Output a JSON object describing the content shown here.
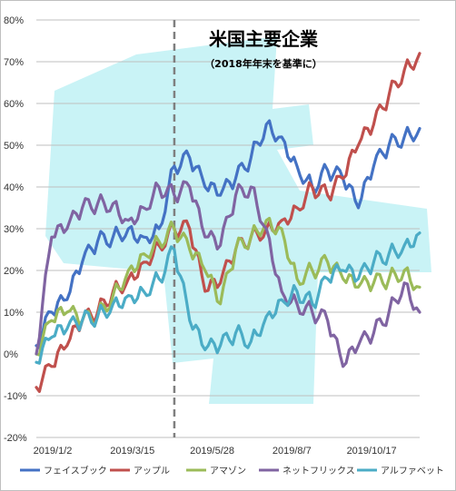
{
  "chart_data": {
    "type": "line",
    "title": "米国主要企業",
    "subtitle": "（2018年年末を基準に）",
    "x_tick_labels": [
      "2019/1/2",
      "2019/3/15",
      "2019/5/28",
      "2019/8/7",
      "2019/10/17"
    ],
    "y_tick_labels": [
      "80%",
      "70%",
      "60%",
      "50%",
      "40%",
      "30%",
      "20%",
      "10%",
      "0%",
      "-10%",
      "-20%"
    ],
    "ylim": [
      -20,
      80
    ],
    "x_unit": "trading days since 2019/1/2",
    "xlim": [
      0,
      250
    ],
    "reference_line_x": 90,
    "grid": "horizontal",
    "legend_position": "bottom",
    "series": [
      {
        "name": "フェイスブック",
        "color": "#4472c4",
        "x": [
          0,
          10,
          20,
          30,
          40,
          50,
          60,
          70,
          80,
          90,
          100,
          110,
          120,
          130,
          140,
          150,
          160,
          170,
          180,
          190,
          200,
          210,
          220,
          230,
          240,
          250
        ],
        "values": [
          2,
          10,
          13,
          22,
          27,
          28,
          30,
          28,
          30,
          45,
          47,
          40,
          38,
          42,
          47,
          55,
          52,
          45,
          40,
          44,
          42,
          35,
          45,
          50,
          52,
          54
        ]
      },
      {
        "name": "アップル",
        "color": "#c0504d",
        "x": [
          0,
          10,
          20,
          30,
          40,
          50,
          60,
          70,
          80,
          90,
          100,
          110,
          120,
          130,
          140,
          150,
          160,
          170,
          180,
          190,
          200,
          210,
          220,
          230,
          240,
          250
        ],
        "values": [
          -8,
          -3,
          2,
          8,
          10,
          15,
          18,
          22,
          26,
          30,
          30,
          15,
          17,
          25,
          28,
          30,
          32,
          35,
          40,
          38,
          42,
          50,
          55,
          62,
          68,
          72
        ]
      },
      {
        "name": "アマゾン",
        "color": "#9bbb59",
        "x": [
          0,
          10,
          20,
          30,
          40,
          50,
          60,
          70,
          80,
          90,
          100,
          110,
          120,
          130,
          140,
          150,
          160,
          170,
          180,
          190,
          200,
          210,
          220,
          230,
          240,
          250
        ],
        "values": [
          0,
          8,
          10,
          8,
          9,
          14,
          20,
          24,
          27,
          30,
          25,
          20,
          12,
          25,
          28,
          32,
          30,
          18,
          20,
          22,
          18,
          16,
          17,
          18,
          20,
          16
        ]
      },
      {
        "name": "ネットフリックス",
        "color": "#8064a2",
        "x": [
          0,
          10,
          20,
          30,
          40,
          50,
          60,
          70,
          80,
          90,
          100,
          110,
          120,
          130,
          140,
          150,
          160,
          170,
          180,
          190,
          200,
          210,
          220,
          230,
          240,
          250
        ],
        "values": [
          0,
          28,
          30,
          35,
          36,
          36,
          32,
          35,
          40,
          38,
          40,
          28,
          26,
          38,
          40,
          30,
          15,
          12,
          10,
          8,
          -3,
          2,
          5,
          10,
          17,
          10
        ]
      },
      {
        "name": "アルファベット",
        "color": "#4bacc6",
        "x": [
          0,
          10,
          20,
          30,
          40,
          50,
          60,
          70,
          80,
          90,
          100,
          110,
          120,
          130,
          140,
          150,
          160,
          170,
          180,
          190,
          200,
          210,
          220,
          230,
          240,
          250
        ],
        "values": [
          -2,
          4,
          6,
          8,
          9,
          12,
          14,
          15,
          18,
          25,
          8,
          1,
          2,
          5,
          3,
          9,
          13,
          15,
          12,
          18,
          20,
          18,
          22,
          24,
          26,
          29
        ]
      }
    ]
  }
}
